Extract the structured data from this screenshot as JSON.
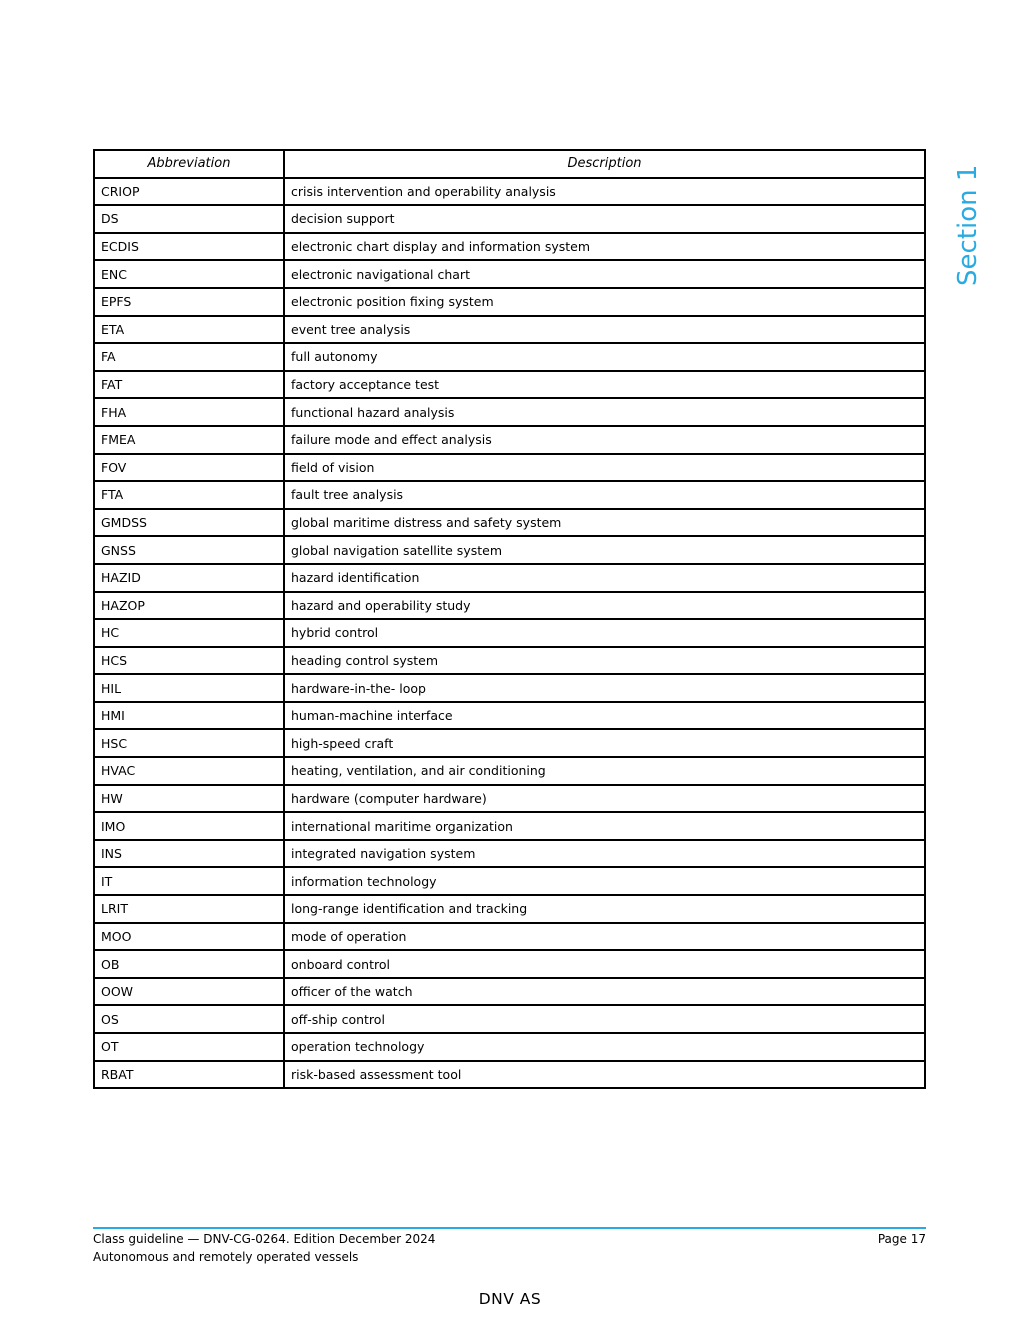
{
  "page": {
    "section_label": "Section 1",
    "colors": {
      "accent": "#29abe2",
      "text": "#000000",
      "background": "#ffffff",
      "table_border": "#000000"
    },
    "footer": {
      "line1": "Class guideline — DNV-CG-0264. Edition December 2024",
      "line2": "Autonomous and remotely operated vessels",
      "page_number": "Page 17",
      "company": "DNV AS"
    }
  },
  "table": {
    "headers": {
      "abbreviation": "Abbreviation",
      "description": "Description"
    },
    "rows": [
      {
        "abbr": "CRIOP",
        "desc": "crisis intervention and operability analysis"
      },
      {
        "abbr": "DS",
        "desc": "decision support"
      },
      {
        "abbr": "ECDIS",
        "desc": "electronic chart display and information system"
      },
      {
        "abbr": "ENC",
        "desc": "electronic navigational chart"
      },
      {
        "abbr": "EPFS",
        "desc": "electronic position fixing system"
      },
      {
        "abbr": "ETA",
        "desc": "event tree analysis"
      },
      {
        "abbr": "FA",
        "desc": "full autonomy"
      },
      {
        "abbr": "FAT",
        "desc": "factory acceptance test"
      },
      {
        "abbr": "FHA",
        "desc": "functional hazard analysis"
      },
      {
        "abbr": "FMEA",
        "desc": "failure mode and effect analysis"
      },
      {
        "abbr": "FOV",
        "desc": "field of vision"
      },
      {
        "abbr": "FTA",
        "desc": "fault tree analysis"
      },
      {
        "abbr": "GMDSS",
        "desc": "global maritime distress and safety system"
      },
      {
        "abbr": "GNSS",
        "desc": "global navigation satellite system"
      },
      {
        "abbr": "HAZID",
        "desc": "hazard identification"
      },
      {
        "abbr": "HAZOP",
        "desc": "hazard and operability study"
      },
      {
        "abbr": "HC",
        "desc": "hybrid control"
      },
      {
        "abbr": "HCS",
        "desc": "heading control system"
      },
      {
        "abbr": "HIL",
        "desc": "hardware-in-the- loop"
      },
      {
        "abbr": "HMI",
        "desc": "human-machine interface"
      },
      {
        "abbr": "HSC",
        "desc": "high-speed craft"
      },
      {
        "abbr": "HVAC",
        "desc": "heating, ventilation, and air conditioning"
      },
      {
        "abbr": "HW",
        "desc": "hardware (computer hardware)"
      },
      {
        "abbr": "IMO",
        "desc": "international maritime organization"
      },
      {
        "abbr": "INS",
        "desc": "integrated navigation system"
      },
      {
        "abbr": "IT",
        "desc": "information technology"
      },
      {
        "abbr": "LRIT",
        "desc": "long-range identification and tracking"
      },
      {
        "abbr": "MOO",
        "desc": "mode of operation"
      },
      {
        "abbr": "OB",
        "desc": "onboard control"
      },
      {
        "abbr": "OOW",
        "desc": "officer of the watch"
      },
      {
        "abbr": "OS",
        "desc": "off-ship control"
      },
      {
        "abbr": "OT",
        "desc": "operation technology"
      },
      {
        "abbr": "RBAT",
        "desc": "risk-based assessment tool"
      }
    ]
  }
}
